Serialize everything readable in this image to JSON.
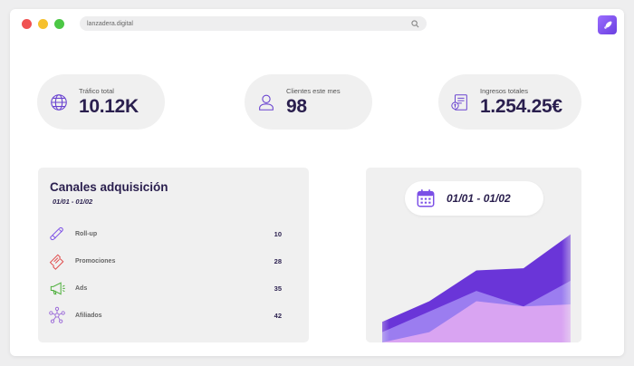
{
  "browser": {
    "url": "lanzadera.digital",
    "icons": [
      "search-icon",
      "rocket-icon"
    ]
  },
  "stats": [
    {
      "label": "Tráfico total",
      "value": "10.12K",
      "icon": "globe-icon"
    },
    {
      "label": "Clientes este mes",
      "value": "98",
      "icon": "user-icon"
    },
    {
      "label": "Ingresos totales",
      "value": "1.254.25€",
      "icon": "invoice-icon"
    }
  ],
  "channels": {
    "title": "Canales adquisición",
    "date_range": "01/01 - 01/02",
    "rows": [
      {
        "label": "Roll-up",
        "value": "10",
        "icon": "rollup-icon"
      },
      {
        "label": "Promociones",
        "value": "28",
        "icon": "ticket-icon"
      },
      {
        "label": "Ads",
        "value": "35",
        "icon": "megaphone-icon"
      },
      {
        "label": "Afiliados",
        "value": "42",
        "icon": "network-icon"
      }
    ]
  },
  "chart": {
    "date_range": "01/01 - 01/02",
    "icon": "calendar-icon"
  },
  "chart_data": {
    "type": "area",
    "series": [
      {
        "values": [
          2,
          4,
          7,
          7.2,
          10.5
        ]
      },
      {
        "values": [
          1,
          3,
          5,
          3.5,
          6
        ]
      },
      {
        "values": [
          0,
          1,
          4,
          3.5,
          3.7
        ]
      }
    ],
    "ylim": [
      0,
      11
    ],
    "colors": [
      "#6a35d8",
      "#9b7df0",
      "#e0a8f2"
    ]
  },
  "colors": {
    "accent": "#7b4fe6",
    "dark_text": "#2a1f4e",
    "card": "#f0f0f0"
  }
}
